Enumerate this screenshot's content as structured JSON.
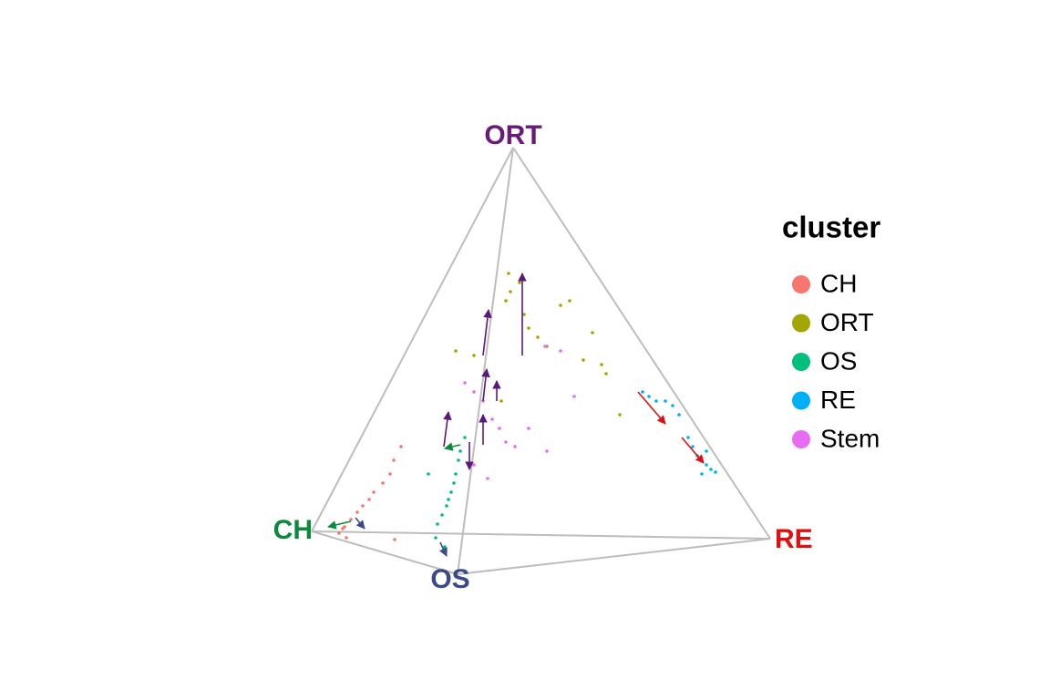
{
  "chart_data": {
    "type": "scatter",
    "legend_title": "cluster",
    "vertex_labels": [
      {
        "text": "ORT",
        "color": "#6a1b7a"
      },
      {
        "text": "CH",
        "color": "#0a8a3a"
      },
      {
        "text": "OS",
        "color": "#3a4a8a"
      },
      {
        "text": "RE",
        "color": "#e01010"
      }
    ],
    "series": [
      {
        "name": "CH",
        "color": "#f8766d",
        "x": [
          372,
          378,
          385,
          392,
          398,
          405,
          410,
          420,
          428,
          432,
          440,
          380,
          376,
          395,
          433
        ],
        "y": [
          585,
          578,
          570,
          562,
          555,
          548,
          540,
          530,
          520,
          505,
          490,
          590,
          580,
          575,
          592
        ]
      },
      {
        "name": "ORT",
        "color": "#a3a500",
        "x": [
          558,
          555,
          560,
          570,
          575,
          580,
          590,
          600,
          615,
          625,
          640,
          650,
          660,
          665,
          680,
          500,
          520,
          550
        ],
        "y": [
          300,
          330,
          320,
          310,
          345,
          360,
          370,
          380,
          335,
          330,
          395,
          365,
          400,
          410,
          455,
          385,
          390,
          440
        ]
      },
      {
        "name": "OS",
        "color": "#00bf7d",
        "x": [
          480,
          485,
          490,
          492,
          495,
          498,
          500,
          503,
          505,
          510,
          470,
          478,
          488
        ],
        "y": [
          575,
          565,
          555,
          548,
          540,
          530,
          520,
          505,
          495,
          480,
          520,
          590,
          600
        ]
      },
      {
        "name": "RE",
        "color": "#00b0f6",
        "x": [
          705,
          712,
          720,
          730,
          738,
          745,
          755,
          760,
          765,
          770,
          775,
          780,
          785,
          770,
          775
        ],
        "y": [
          430,
          435,
          440,
          440,
          445,
          455,
          480,
          490,
          500,
          505,
          510,
          515,
          518,
          520,
          495
        ]
      },
      {
        "name": "Stem",
        "color": "#e76bf3",
        "x": [
          510,
          520,
          530,
          540,
          548,
          555,
          565,
          580,
          598,
          615,
          600,
          630,
          535,
          520
        ],
        "y": [
          420,
          430,
          440,
          460,
          470,
          485,
          490,
          470,
          380,
          385,
          495,
          435,
          525,
          510
        ]
      }
    ]
  }
}
